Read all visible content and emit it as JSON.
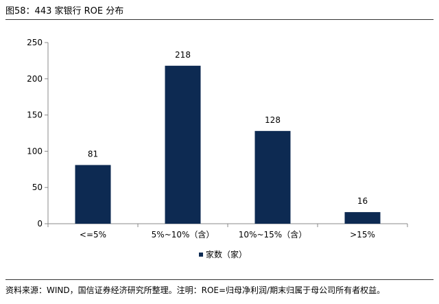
{
  "figure": {
    "title": "图58：443 家银行 ROE 分布",
    "source": "资料来源：WIND，国信证券经济研究所整理。注明：ROE=归母净利润/期末归属于母公司所有者权益。"
  },
  "chart_data": {
    "type": "bar",
    "categories": [
      "<=5%",
      "5%~10%（含）",
      "10%~15%（含）",
      ">15%"
    ],
    "series": [
      {
        "name": "家数（家）",
        "values": [
          81,
          218,
          128,
          16
        ],
        "color": "#0d2a52"
      }
    ],
    "ylim": [
      0,
      250
    ],
    "yticks": [
      0,
      50,
      100,
      150,
      200,
      250
    ],
    "data_labels": true,
    "legend_position": "bottom-center",
    "grid": false
  }
}
